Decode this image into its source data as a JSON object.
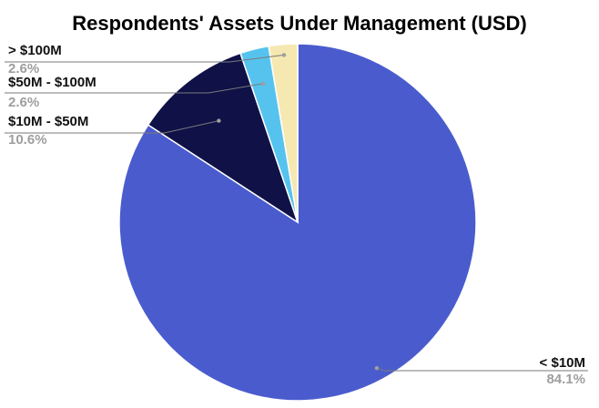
{
  "chart_data": {
    "type": "pie",
    "title": "Respondents' Assets Under Management (USD)",
    "start_angle_deg": 0,
    "direction": "clockwise",
    "legend": "none",
    "slices": [
      {
        "label": "< $10M",
        "value": 84.1,
        "value_label": "84.1%",
        "color": "#4a5ccd"
      },
      {
        "label": "$10M - $50M",
        "value": 10.6,
        "value_label": "10.6%",
        "color": "#0f1147"
      },
      {
        "label": "$50M - $100M",
        "value": 2.6,
        "value_label": "2.6%",
        "color": "#56c3ef"
      },
      {
        "label": "> $100M",
        "value": 2.6,
        "value_label": "2.6%",
        "color": "#f6e8b1"
      }
    ]
  }
}
